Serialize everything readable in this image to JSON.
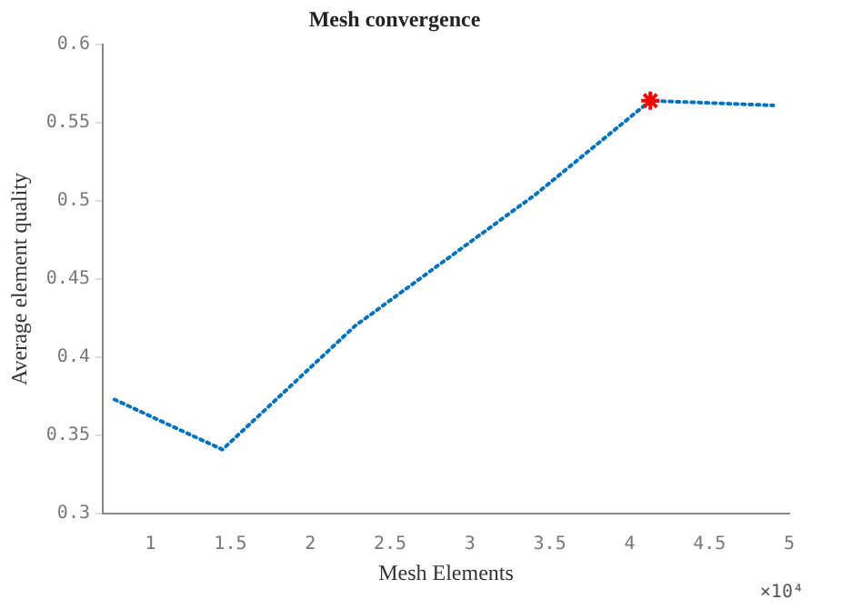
{
  "chart_data": {
    "type": "line",
    "title": "Mesh convergence",
    "xlabel": "Mesh Elements",
    "ylabel": "Average element quality",
    "annotations": [
      "×10⁴"
    ],
    "series": [
      {
        "color": "#0072bd",
        "x": [
          0.774,
          1.45,
          2.28,
          3.41,
          4.13,
          4.9
        ],
        "values": [
          0.373,
          0.341,
          0.42,
          0.504,
          0.564,
          0.561
        ],
        "marker": "none",
        "line_style": "dotted"
      },
      {
        "type": "scatter",
        "color": "#ff0000",
        "x": [
          4.13
        ],
        "values": [
          0.564
        ],
        "marker": "cross"
      }
    ],
    "xlim": [
      0.7,
      5
    ],
    "xticks": [
      1,
      1.5,
      2,
      2.5,
      3,
      3.5,
      4,
      4.5,
      5
    ],
    "ylim": [
      0.3,
      0.6
    ],
    "yticks": [
      0.3,
      0.35,
      0.4,
      0.45,
      0.5,
      0.55,
      0.6
    ],
    "grid": false,
    "legend": false
  }
}
